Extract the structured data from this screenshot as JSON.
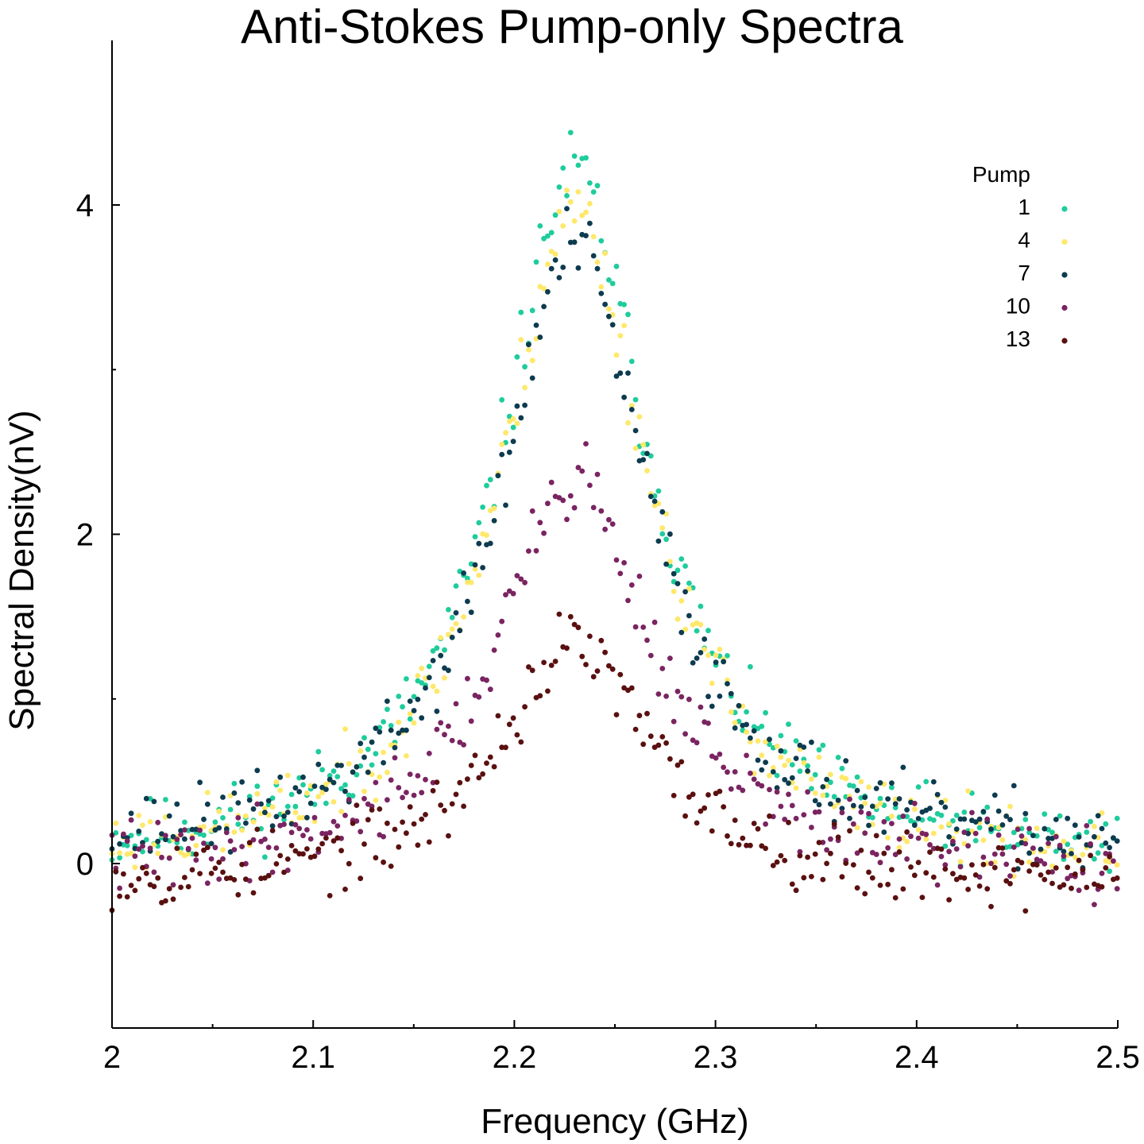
{
  "chart_data": {
    "type": "scatter",
    "title": "Anti-Stokes Pump-only Spectra",
    "xlabel": "Frequency (GHz)",
    "ylabel": "Spectral Density(nV)",
    "xlim": [
      2.0,
      2.5
    ],
    "ylim": [
      -0.5,
      5.0
    ],
    "xticks": [
      2.0,
      2.1,
      2.2,
      2.3,
      2.4,
      2.5
    ],
    "xtick_labels": [
      "2",
      "2.1",
      "2.2",
      "2.3",
      "2.4",
      "2.5"
    ],
    "xminor": [
      2.05,
      2.15,
      2.25,
      2.35,
      2.45
    ],
    "yticks": [
      0,
      2,
      4
    ],
    "ytick_labels": [
      "0",
      "2",
      "4"
    ],
    "yminor": [
      1,
      3
    ],
    "legend": {
      "title": "Pump",
      "position": "top-right"
    },
    "model": {
      "center_ghz": 2.23,
      "hwhm_ghz": 0.045,
      "x_step_ghz": 0.0019,
      "noise_nv": 0.13
    },
    "series": [
      {
        "name": "1",
        "color": "#1fcc9c",
        "peak": 4.2,
        "offset": 0.0,
        "seed": 11
      },
      {
        "name": "4",
        "color": "#ffe86a",
        "peak": 4.0,
        "offset": -0.02,
        "seed": 23
      },
      {
        "name": "7",
        "color": "#0d3b4f",
        "peak": 3.7,
        "offset": 0.05,
        "seed": 37
      },
      {
        "name": "10",
        "color": "#7a2461",
        "peak": 2.4,
        "offset": -0.05,
        "seed": 41
      },
      {
        "name": "13",
        "color": "#5a1010",
        "peak": 1.45,
        "offset": -0.12,
        "seed": 53
      }
    ]
  }
}
